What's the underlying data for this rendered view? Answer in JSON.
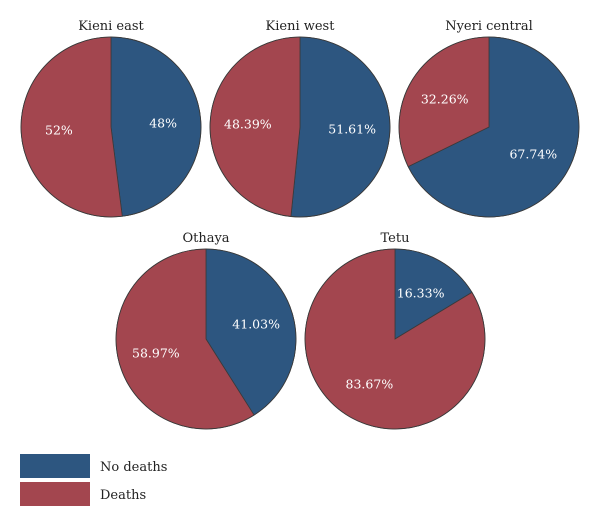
{
  "colors": {
    "no_deaths": "#2d5680",
    "deaths": "#a3464f",
    "outline": "#3a3a3a"
  },
  "legend": {
    "entries": [
      {
        "label": "No deaths",
        "color_key": "no_deaths"
      },
      {
        "label": "Deaths",
        "color_key": "deaths"
      }
    ]
  },
  "chart_data": [
    {
      "type": "pie",
      "title": "Kieni east",
      "series": [
        {
          "name": "No deaths",
          "value": 48,
          "label": "48%"
        },
        {
          "name": "Deaths",
          "value": 52,
          "label": "52%"
        }
      ]
    },
    {
      "type": "pie",
      "title": "Kieni west",
      "series": [
        {
          "name": "No deaths",
          "value": 51.61,
          "label": "51.61%"
        },
        {
          "name": "Deaths",
          "value": 48.39,
          "label": "48.39%"
        }
      ]
    },
    {
      "type": "pie",
      "title": "Nyeri central",
      "series": [
        {
          "name": "No deaths",
          "value": 67.74,
          "label": "67.74%"
        },
        {
          "name": "Deaths",
          "value": 32.26,
          "label": "32.26%"
        }
      ]
    },
    {
      "type": "pie",
      "title": "Othaya",
      "series": [
        {
          "name": "No deaths",
          "value": 41.03,
          "label": "41.03%"
        },
        {
          "name": "Deaths",
          "value": 58.97,
          "label": "58.97%"
        }
      ]
    },
    {
      "type": "pie",
      "title": "Tetu",
      "series": [
        {
          "name": "No deaths",
          "value": 16.33,
          "label": "16.33%"
        },
        {
          "name": "Deaths",
          "value": 83.67,
          "label": "83.67%"
        }
      ]
    }
  ]
}
